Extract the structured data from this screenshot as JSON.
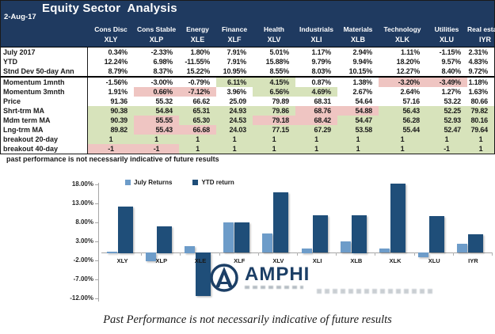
{
  "header": {
    "title": "Equity Sector  Analysis",
    "date": "2-Aug-17",
    "columns": [
      {
        "sector": "Cons Disc",
        "ticker": "XLY"
      },
      {
        "sector": "Cons Stable",
        "ticker": "XLP"
      },
      {
        "sector": "Energy",
        "ticker": "XLE"
      },
      {
        "sector": "Finance",
        "ticker": "XLF"
      },
      {
        "sector": "Health",
        "ticker": "XLV"
      },
      {
        "sector": "Industrials",
        "ticker": "XLI"
      },
      {
        "sector": "Materials",
        "ticker": "XLB"
      },
      {
        "sector": "Technology",
        "ticker": "XLK"
      },
      {
        "sector": "Utilities",
        "ticker": "XLU"
      },
      {
        "sector": "Real estate",
        "ticker": "IYR"
      }
    ]
  },
  "table": {
    "rows": [
      {
        "label": "July 2017",
        "align": "right",
        "values": [
          "0.34%",
          "-2.33%",
          "1.80%",
          "7.91%",
          "5.01%",
          "1.17%",
          "2.94%",
          "1.11%",
          "-1.15%",
          "2.31%"
        ],
        "fills": [
          "w",
          "w",
          "w",
          "w",
          "w",
          "w",
          "w",
          "w",
          "w",
          "w"
        ]
      },
      {
        "label": "YTD",
        "align": "right",
        "values": [
          "12.24%",
          "6.98%",
          "-11.55%",
          "7.91%",
          "15.88%",
          "9.79%",
          "9.94%",
          "18.20%",
          "9.57%",
          "4.83%"
        ],
        "fills": [
          "w",
          "w",
          "w",
          "w",
          "w",
          "w",
          "w",
          "w",
          "w",
          "w"
        ]
      },
      {
        "label": "Stnd Dev 50-day Ann",
        "align": "right",
        "values": [
          "8.79%",
          "8.37%",
          "15.22%",
          "10.95%",
          "8.55%",
          "8.03%",
          "10.15%",
          "12.27%",
          "8.40%",
          "9.72%"
        ],
        "fills": [
          "w",
          "w",
          "w",
          "w",
          "w",
          "w",
          "w",
          "w",
          "w",
          "w"
        ]
      },
      {
        "label": "Momentum 1mnth",
        "align": "right",
        "section_start": true,
        "values": [
          "-1.56%",
          "-3.00%",
          "-0.79%",
          "6.11%",
          "4.15%",
          "0.87%",
          "1.38%",
          "-3.20%",
          "-3.49%",
          "1.18%"
        ],
        "fills": [
          "w",
          "w",
          "w",
          "g",
          "g",
          "w",
          "w",
          "p",
          "p",
          "w"
        ]
      },
      {
        "label": "Momentum 3mnth",
        "align": "right",
        "values": [
          "1.91%",
          "0.66%",
          "-7.12%",
          "3.96%",
          "6.56%",
          "4.69%",
          "2.67%",
          "2.64%",
          "1.27%",
          "1.63%"
        ],
        "fills": [
          "w",
          "p",
          "p",
          "w",
          "g",
          "g",
          "w",
          "w",
          "w",
          "w"
        ]
      },
      {
        "label": "Price",
        "align": "right",
        "values": [
          "91.36",
          "55.32",
          "66.62",
          "25.09",
          "79.89",
          "68.31",
          "54.64",
          "57.16",
          "53.22",
          "80.66"
        ],
        "fills": [
          "w",
          "w",
          "w",
          "w",
          "w",
          "w",
          "w",
          "w",
          "w",
          "w"
        ]
      },
      {
        "label": "Shrt-trm MA",
        "align": "right",
        "values": [
          "90.38",
          "54.84",
          "65.31",
          "24.93",
          "79.86",
          "68.76",
          "54.88",
          "56.43",
          "52.25",
          "79.82"
        ],
        "fills": [
          "g",
          "g",
          "g",
          "g",
          "g",
          "p",
          "p",
          "g",
          "g",
          "g"
        ]
      },
      {
        "label": "Mdm term MA",
        "align": "right",
        "values": [
          "90.39",
          "55.55",
          "65.30",
          "24.53",
          "79.18",
          "68.42",
          "54.47",
          "56.28",
          "52.93",
          "80.16"
        ],
        "fills": [
          "g",
          "p",
          "g",
          "g",
          "p",
          "p",
          "g",
          "g",
          "g",
          "g"
        ]
      },
      {
        "label": "Lng-trm MA",
        "align": "right",
        "values": [
          "89.82",
          "55.43",
          "66.68",
          "24.03",
          "77.15",
          "67.29",
          "53.58",
          "55.44",
          "52.47",
          "79.64"
        ],
        "fills": [
          "g",
          "p",
          "p",
          "g",
          "g",
          "g",
          "g",
          "g",
          "g",
          "g"
        ]
      },
      {
        "label": "breakout 20-day",
        "align": "center",
        "values": [
          "1",
          "1",
          "1",
          "1",
          "1",
          "1",
          "1",
          "1",
          "1",
          "1"
        ],
        "fills": [
          "g",
          "g",
          "g",
          "g",
          "g",
          "g",
          "g",
          "g",
          "g",
          "g"
        ]
      },
      {
        "label": "breakout 40-day",
        "align": "center",
        "values": [
          "-1",
          "-1",
          "1",
          "1",
          "1",
          "1",
          "1",
          "1",
          "-1",
          "1"
        ],
        "fills": [
          "p",
          "p",
          "g",
          "g",
          "g",
          "g",
          "g",
          "g",
          "g",
          "g"
        ]
      }
    ],
    "footnote": "past performance is not necessarily indicative of future results"
  },
  "chart_data": {
    "type": "bar",
    "title": "",
    "categories": [
      "XLY",
      "XLP",
      "XLE",
      "XLF",
      "XLV",
      "XLI",
      "XLB",
      "XLK",
      "XLU",
      "IYR"
    ],
    "series": [
      {
        "name": "July Returns",
        "color_key": "bar_light",
        "values": [
          0.34,
          -2.33,
          1.8,
          7.91,
          5.01,
          1.17,
          2.94,
          1.11,
          -1.15,
          2.31
        ]
      },
      {
        "name": "YTD return",
        "color_key": "bar_dark",
        "values": [
          12.24,
          6.98,
          -11.55,
          7.91,
          15.88,
          9.79,
          9.94,
          18.2,
          9.57,
          4.83
        ]
      }
    ],
    "ylim": [
      -12,
      18
    ],
    "ytick_step": 5,
    "ytick_labels": [
      "18.00%",
      "13.00%",
      "8.00%",
      "3.00%",
      "-2.00%",
      "-7.00%",
      "-12.00%"
    ],
    "legend_position": "top",
    "grid": false
  },
  "watermark": {
    "brand": "AMPHI",
    "logo_icon": "amphi-circle-a-icon"
  },
  "caption": "Past Performance is not necessarily indicative of future results",
  "colors": {
    "header_navy": "#1f3a60",
    "cell_green": "#d7e3bb",
    "cell_pink": "#efc5c2",
    "cell_white": "#ffffff",
    "bar_light": "#6d9cc9",
    "bar_dark": "#1f4e79",
    "axis_gray": "#a6a6a6",
    "brand_navy": "#1c3f66"
  }
}
